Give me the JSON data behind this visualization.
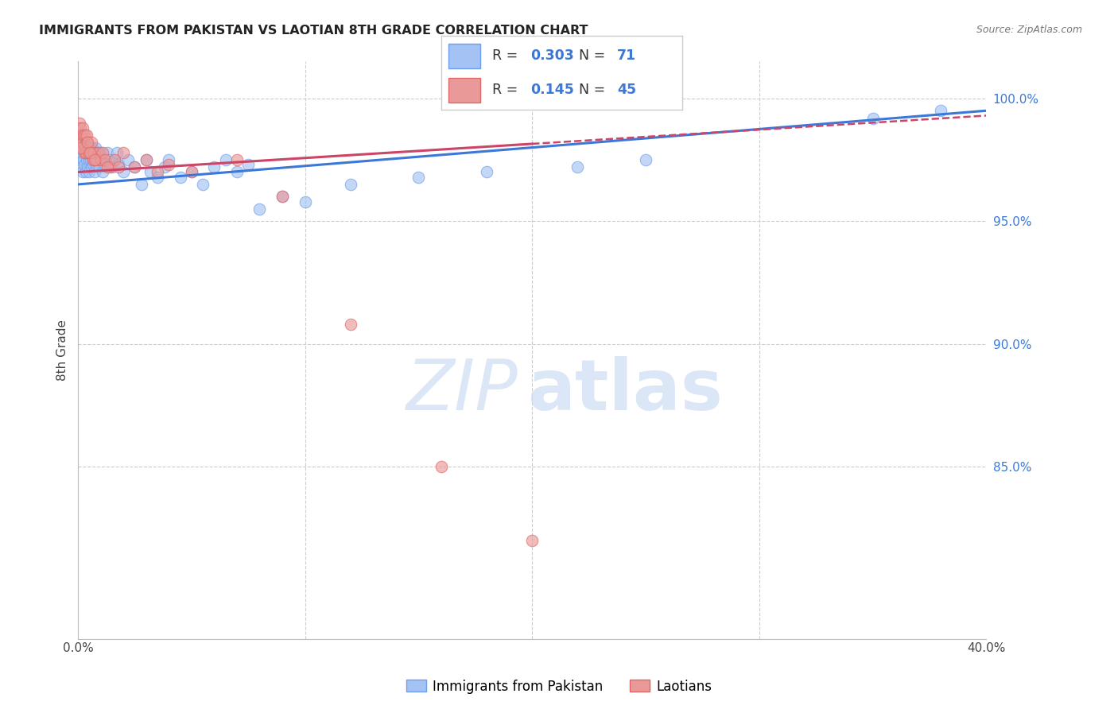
{
  "title": "IMMIGRANTS FROM PAKISTAN VS LAOTIAN 8TH GRADE CORRELATION CHART",
  "source": "Source: ZipAtlas.com",
  "ylabel": "8th Grade",
  "xmin": 0.0,
  "xmax": 40.0,
  "ymin": 78.0,
  "ymax": 101.5,
  "blue_R": 0.303,
  "blue_N": 71,
  "pink_R": 0.145,
  "pink_N": 45,
  "blue_color": "#a4c2f4",
  "pink_color": "#ea9999",
  "blue_edge_color": "#6d9eeb",
  "pink_edge_color": "#e06666",
  "blue_line_color": "#3c78d8",
  "pink_line_color": "#cc4466",
  "legend_label_blue": "Immigrants from Pakistan",
  "legend_label_pink": "Laotians",
  "blue_scatter_x": [
    0.05,
    0.08,
    0.1,
    0.12,
    0.15,
    0.17,
    0.18,
    0.2,
    0.22,
    0.25,
    0.27,
    0.3,
    0.32,
    0.35,
    0.38,
    0.4,
    0.42,
    0.45,
    0.48,
    0.5,
    0.52,
    0.55,
    0.58,
    0.6,
    0.62,
    0.65,
    0.68,
    0.7,
    0.73,
    0.75,
    0.78,
    0.8,
    0.85,
    0.9,
    0.95,
    1.0,
    1.05,
    1.1,
    1.2,
    1.3,
    1.4,
    1.5,
    1.6,
    1.7,
    1.8,
    2.0,
    2.2,
    2.5,
    2.8,
    3.0,
    3.2,
    3.5,
    3.8,
    4.0,
    4.5,
    5.0,
    5.5,
    6.0,
    6.5,
    7.0,
    7.5,
    8.0,
    9.0,
    10.0,
    12.0,
    15.0,
    18.0,
    22.0,
    25.0,
    35.0,
    38.0
  ],
  "blue_scatter_y": [
    97.8,
    98.2,
    98.0,
    97.5,
    98.5,
    97.2,
    97.8,
    97.0,
    98.0,
    97.5,
    97.3,
    98.2,
    97.8,
    97.0,
    97.5,
    98.0,
    97.2,
    97.8,
    97.5,
    97.0,
    98.0,
    97.5,
    97.8,
    97.2,
    98.0,
    97.5,
    97.3,
    97.8,
    97.0,
    97.5,
    98.0,
    97.3,
    97.8,
    97.5,
    97.2,
    97.8,
    97.5,
    97.0,
    97.3,
    97.8,
    97.5,
    97.2,
    97.5,
    97.8,
    97.3,
    97.0,
    97.5,
    97.2,
    96.5,
    97.5,
    97.0,
    96.8,
    97.2,
    97.5,
    96.8,
    97.0,
    96.5,
    97.2,
    97.5,
    97.0,
    97.3,
    95.5,
    96.0,
    95.8,
    96.5,
    96.8,
    97.0,
    97.2,
    97.5,
    99.2,
    99.5
  ],
  "pink_scatter_x": [
    0.05,
    0.08,
    0.1,
    0.13,
    0.15,
    0.18,
    0.2,
    0.22,
    0.25,
    0.28,
    0.3,
    0.33,
    0.35,
    0.38,
    0.4,
    0.45,
    0.5,
    0.55,
    0.6,
    0.65,
    0.7,
    0.8,
    0.9,
    1.0,
    1.1,
    1.2,
    1.4,
    1.6,
    1.8,
    2.0,
    2.5,
    3.0,
    3.5,
    4.0,
    5.0,
    7.0,
    9.0,
    12.0,
    16.0,
    20.0,
    0.12,
    0.42,
    0.52,
    0.72,
    1.3
  ],
  "pink_scatter_y": [
    98.5,
    99.0,
    98.8,
    98.2,
    98.5,
    98.0,
    98.8,
    98.2,
    98.5,
    97.8,
    98.0,
    98.5,
    97.8,
    98.2,
    98.5,
    97.8,
    98.0,
    97.8,
    98.2,
    97.5,
    97.8,
    97.5,
    97.8,
    97.5,
    97.8,
    97.5,
    97.2,
    97.5,
    97.2,
    97.8,
    97.2,
    97.5,
    97.0,
    97.3,
    97.0,
    97.5,
    96.0,
    90.8,
    85.0,
    82.0,
    98.0,
    98.2,
    97.8,
    97.5,
    97.2
  ],
  "pink_max_data_x": 20.0
}
